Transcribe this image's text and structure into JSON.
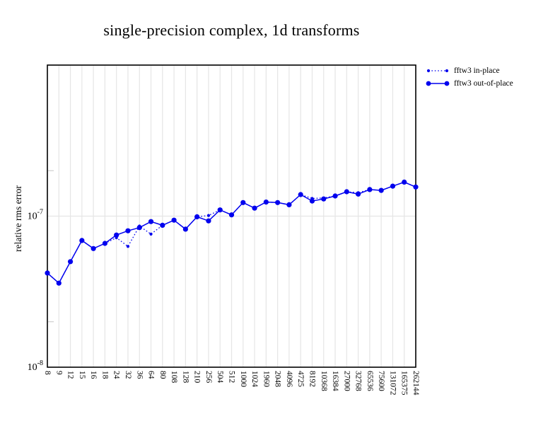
{
  "colors": {
    "series": "#0000ee",
    "grid": "#e5e5e5",
    "minor_tick": "#cfcfcf",
    "axis": "#000000",
    "background": "#ffffff",
    "text": "#000000"
  },
  "chart_data": {
    "type": "line",
    "title": "single-precision complex, 1d transforms",
    "xlabel": "",
    "ylabel": "relative rms error",
    "x_scale": "categorical",
    "y_scale": "log",
    "ylim": [
      1e-08,
      1e-06
    ],
    "grid": true,
    "legend_position": "top-right",
    "y_ticks": [
      {
        "base": "10",
        "exp": "-7",
        "value": 1e-07
      },
      {
        "base": "10",
        "exp": "-8",
        "value": 1e-08
      }
    ],
    "y_minor_ticks": [
      2e-08,
      2e-07
    ],
    "categories": [
      "8",
      "9",
      "12",
      "15",
      "16",
      "18",
      "24",
      "32",
      "36",
      "64",
      "80",
      "108",
      "128",
      "210",
      "256",
      "504",
      "512",
      "1000",
      "1024",
      "1960",
      "2048",
      "4096",
      "4725",
      "8192",
      "10368",
      "16384",
      "27000",
      "32768",
      "65536",
      "75600",
      "131072",
      "165375",
      "262144"
    ],
    "series": [
      {
        "name": "fftw3 in-place",
        "style": "dotted",
        "values": [
          4.2e-08,
          3.6e-08,
          5e-08,
          6.9e-08,
          6.1e-08,
          6.6e-08,
          7.2e-08,
          6.3e-08,
          8.6e-08,
          7.6e-08,
          8.7e-08,
          9.4e-08,
          8.2e-08,
          9.9e-08,
          1.01e-07,
          1.1e-07,
          1.02e-07,
          1.23e-07,
          1.13e-07,
          1.24e-07,
          1.23e-07,
          1.19e-07,
          1.39e-07,
          1.31e-07,
          1.32e-07,
          1.36e-07,
          1.45e-07,
          1.43e-07,
          1.5e-07,
          1.48e-07,
          1.58e-07,
          1.68e-07,
          1.56e-07
        ]
      },
      {
        "name": "fftw3 out-of-place",
        "style": "solid",
        "values": [
          4.2e-08,
          3.6e-08,
          5e-08,
          6.9e-08,
          6.1e-08,
          6.6e-08,
          7.5e-08,
          8e-08,
          8.4e-08,
          9.2e-08,
          8.7e-08,
          9.4e-08,
          8.2e-08,
          9.9e-08,
          9.3e-08,
          1.1e-07,
          1.02e-07,
          1.23e-07,
          1.13e-07,
          1.24e-07,
          1.23e-07,
          1.19e-07,
          1.39e-07,
          1.26e-07,
          1.3e-07,
          1.36e-07,
          1.45e-07,
          1.4e-07,
          1.5e-07,
          1.48e-07,
          1.58e-07,
          1.68e-07,
          1.56e-07
        ]
      }
    ]
  }
}
